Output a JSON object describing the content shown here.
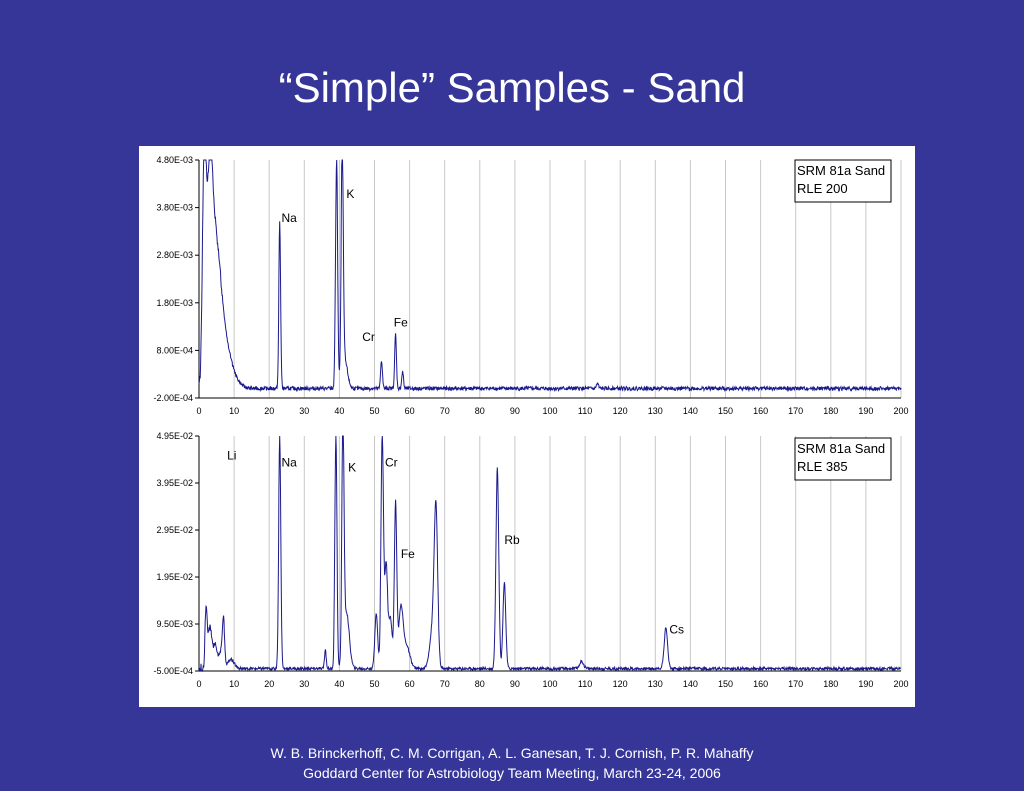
{
  "title": "“Simple” Samples - Sand",
  "footer": {
    "line1": "W. B. Brinckerhoff, C. M. Corrigan, A. L. Ganesan, T. J. Cornish, P. R. Mahaffy",
    "line2": "Goddard Center for Astrobiology Team Meeting, March 23-24, 2006"
  },
  "colors": {
    "background": "#363699",
    "trace": "#1a1a8c",
    "grid": "#c8c8c8"
  },
  "chart_data": [
    {
      "type": "line",
      "legend": [
        "SRM 81a Sand",
        "RLE 200"
      ],
      "legend_placement": "top-right",
      "grid": "vertical",
      "xlim": [
        0,
        200
      ],
      "ylim": [
        -0.0002,
        0.0048
      ],
      "x_ticks": [
        "0",
        "10",
        "20",
        "30",
        "40",
        "50",
        "60",
        "70",
        "80",
        "90",
        "100",
        "110",
        "120",
        "130",
        "140",
        "150",
        "160",
        "170",
        "180",
        "190",
        "200"
      ],
      "y_ticks": [
        {
          "value": 0.0048,
          "label": "4.80E-03"
        },
        {
          "value": 0.0038,
          "label": "3.80E-03"
        },
        {
          "value": 0.0028,
          "label": "2.80E-03"
        },
        {
          "value": 0.0018,
          "label": "1.80E-03"
        },
        {
          "value": 0.0008,
          "label": "8.00E-04"
        },
        {
          "value": -0.0002,
          "label": "-2.00E-04"
        }
      ],
      "baseline": 0.0,
      "noise": 4e-05,
      "peaks": [
        {
          "x": 1.5,
          "y": 0.0048,
          "w": 0.5
        },
        {
          "x": 3,
          "y": 0.0038,
          "w": 0.8
        },
        {
          "x": 4.5,
          "y": 0.0021,
          "w": 1.2
        },
        {
          "x": 6,
          "y": 0.0012,
          "w": 1.6
        },
        {
          "x": 8,
          "y": 0.0005,
          "w": 2.2
        },
        {
          "x": 23,
          "y": 0.0035,
          "w": 0.25
        },
        {
          "x": 39.2,
          "y": 0.0048,
          "w": 0.3
        },
        {
          "x": 40.8,
          "y": 0.0048,
          "w": 0.3
        },
        {
          "x": 41.5,
          "y": 0.0006,
          "w": 0.8
        },
        {
          "x": 52,
          "y": 0.0006,
          "w": 0.25
        },
        {
          "x": 56,
          "y": 0.00115,
          "w": 0.25
        },
        {
          "x": 58,
          "y": 0.00035,
          "w": 0.25
        },
        {
          "x": 113.5,
          "y": 0.0001,
          "w": 0.3
        }
      ],
      "labels": [
        {
          "text": "Na",
          "x": 23.5,
          "y": 0.0035
        },
        {
          "text": "K",
          "x": 42,
          "y": 0.004
        },
        {
          "text": "Cr",
          "x": 46.5,
          "y": 0.001
        },
        {
          "text": "Fe",
          "x": 55.5,
          "y": 0.0013
        }
      ]
    },
    {
      "type": "line",
      "legend": [
        "SRM 81a Sand",
        "RLE 385"
      ],
      "legend_placement": "top-right",
      "grid": "vertical",
      "xlim": [
        0,
        200
      ],
      "ylim": [
        -0.0005,
        0.0495
      ],
      "x_ticks": [
        "0",
        "10",
        "20",
        "30",
        "40",
        "50",
        "60",
        "70",
        "80",
        "90",
        "100",
        "110",
        "120",
        "130",
        "140",
        "150",
        "160",
        "170",
        "180",
        "190",
        "200"
      ],
      "y_ticks": [
        {
          "value": 0.0495,
          "label": "4.95E-02"
        },
        {
          "value": 0.0395,
          "label": "3.95E-02"
        },
        {
          "value": 0.0295,
          "label": "2.95E-02"
        },
        {
          "value": 0.0195,
          "label": "1.95E-02"
        },
        {
          "value": 0.0095,
          "label": "9.50E-03"
        },
        {
          "value": -0.0005,
          "label": "-5.00E-04"
        }
      ],
      "baseline": 0.0,
      "noise": 0.0003,
      "peaks": [
        {
          "x": 2,
          "y": 0.012,
          "w": 0.3
        },
        {
          "x": 3,
          "y": 0.008,
          "w": 0.5
        },
        {
          "x": 4.5,
          "y": 0.005,
          "w": 0.8
        },
        {
          "x": 6.5,
          "y": 0.004,
          "w": 0.5
        },
        {
          "x": 7,
          "y": 0.008,
          "w": 0.3
        },
        {
          "x": 9,
          "y": 0.002,
          "w": 1.0
        },
        {
          "x": 23,
          "y": 0.0495,
          "w": 0.3
        },
        {
          "x": 36,
          "y": 0.004,
          "w": 0.25
        },
        {
          "x": 39,
          "y": 0.0495,
          "w": 0.3
        },
        {
          "x": 41,
          "y": 0.0495,
          "w": 0.3
        },
        {
          "x": 42,
          "y": 0.012,
          "w": 0.8
        },
        {
          "x": 50.5,
          "y": 0.012,
          "w": 0.4
        },
        {
          "x": 52.2,
          "y": 0.0495,
          "w": 0.35
        },
        {
          "x": 53.3,
          "y": 0.022,
          "w": 0.4
        },
        {
          "x": 54.5,
          "y": 0.011,
          "w": 0.5
        },
        {
          "x": 56,
          "y": 0.035,
          "w": 0.35
        },
        {
          "x": 57.5,
          "y": 0.012,
          "w": 0.6
        },
        {
          "x": 59,
          "y": 0.005,
          "w": 1.0
        },
        {
          "x": 67.5,
          "y": 0.032,
          "w": 0.5
        },
        {
          "x": 66.5,
          "y": 0.008,
          "w": 0.8
        },
        {
          "x": 85,
          "y": 0.043,
          "w": 0.4
        },
        {
          "x": 87,
          "y": 0.0185,
          "w": 0.4
        },
        {
          "x": 109,
          "y": 0.0015,
          "w": 0.6
        },
        {
          "x": 133,
          "y": 0.0085,
          "w": 0.5
        }
      ],
      "labels": [
        {
          "text": "Li",
          "x": 8,
          "y": 0.0445
        },
        {
          "text": "Na",
          "x": 23.5,
          "y": 0.043
        },
        {
          "text": "K",
          "x": 42.5,
          "y": 0.042
        },
        {
          "text": "Cr",
          "x": 53,
          "y": 0.043
        },
        {
          "text": "Fe",
          "x": 57.5,
          "y": 0.0235
        },
        {
          "text": "Rb",
          "x": 87,
          "y": 0.0265
        },
        {
          "text": "Cs",
          "x": 134,
          "y": 0.0075
        }
      ]
    }
  ]
}
